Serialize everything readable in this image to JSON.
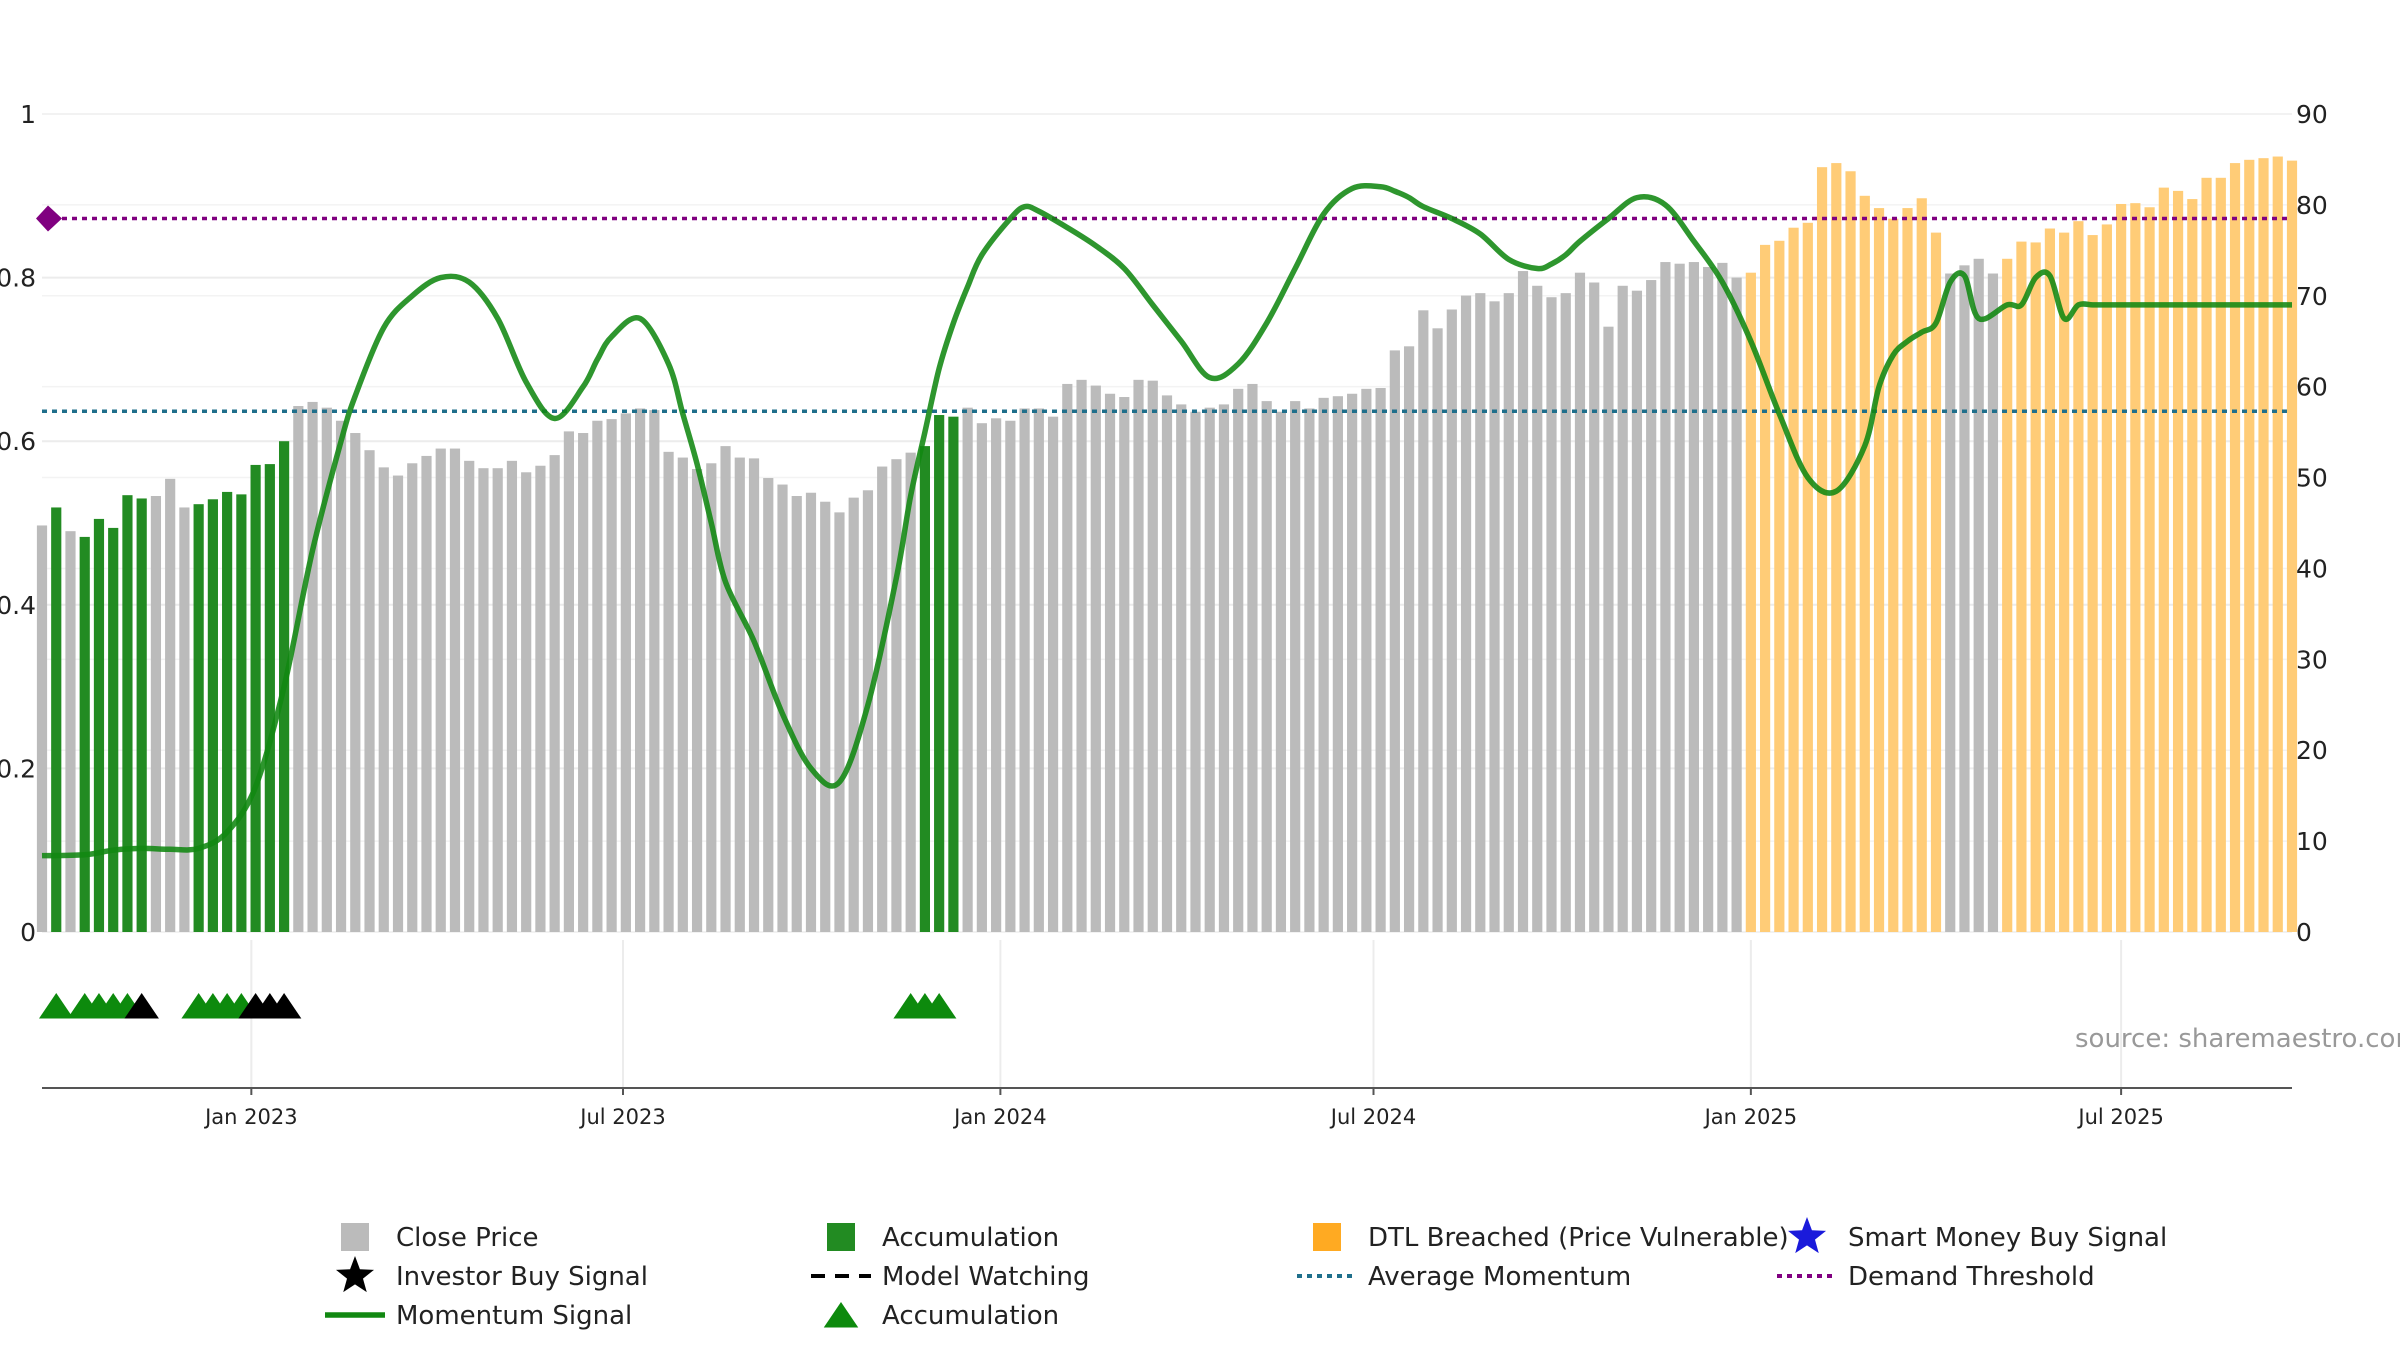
{
  "chart_data": {
    "type": "bar",
    "title": "",
    "colors": {
      "close_price": "#bbbbbb",
      "accumulation": "#228b22",
      "dtl_breached": "#ffcc77",
      "momentum": "#118811",
      "average_momentum": "#1f6f8b",
      "demand_threshold": "#800080",
      "marker_accumulation": "#0d8a0d",
      "marker_investor": "#000000",
      "smart_money": "#1a1adb"
    },
    "left_axis": {
      "ylim": [
        0,
        1
      ],
      "ticks": [
        "0",
        "0.2",
        "0.4",
        "0.6",
        "0.8",
        "1"
      ]
    },
    "right_axis": {
      "ylim": [
        0,
        90
      ],
      "ticks": [
        "0",
        "10",
        "20",
        "30",
        "40",
        "50",
        "60",
        "70",
        "80",
        "90"
      ]
    },
    "x_axis": {
      "start_week": 0,
      "end_week": 158,
      "tick_labels": [
        "Jan 2023",
        "Jul 2023",
        "Jan 2024",
        "Jul 2024",
        "Jan 2025",
        "Jul 2025"
      ],
      "tick_weeks": [
        14.7,
        40.8,
        67.3,
        93.5,
        120.0,
        146.0
      ]
    },
    "close_price": {
      "weeks": [
        0,
        1,
        2,
        3,
        4,
        5,
        6,
        7,
        8,
        9,
        10,
        11,
        12,
        13,
        14,
        15,
        16,
        17,
        18,
        19,
        20,
        21,
        22,
        23,
        24,
        25,
        26,
        27,
        28,
        29,
        30,
        31,
        32,
        33,
        34,
        35,
        36,
        37,
        38,
        39,
        40,
        41,
        42,
        43,
        44,
        45,
        46,
        47,
        48,
        49,
        50,
        51,
        52,
        53,
        54,
        55,
        56,
        57,
        58,
        59,
        60,
        61,
        62,
        63,
        64,
        65,
        66,
        67,
        68,
        69,
        70,
        71,
        72,
        73,
        74,
        75,
        76,
        77,
        78,
        79,
        80,
        81,
        82,
        83,
        84,
        85,
        86,
        87,
        88,
        89,
        90,
        91,
        92,
        93,
        94,
        95,
        96,
        97,
        98,
        99,
        100,
        101,
        102,
        103,
        104,
        105,
        106,
        107,
        108,
        109,
        110,
        111,
        112,
        113,
        114,
        115,
        116,
        117,
        118,
        119,
        120,
        121,
        122,
        123,
        124,
        125,
        126,
        127,
        128,
        129,
        130,
        131,
        132,
        133,
        134,
        135,
        136,
        137,
        138,
        139,
        140,
        141,
        142,
        143,
        144,
        145,
        146,
        147,
        148,
        149,
        150,
        151,
        152,
        153,
        154,
        155,
        156,
        157,
        158
      ],
      "values": [
        0.497,
        0.519,
        0.49,
        0.483,
        0.505,
        0.494,
        0.534,
        0.53,
        0.533,
        0.554,
        0.519,
        0.523,
        0.529,
        0.538,
        0.535,
        0.571,
        0.572,
        0.6,
        0.643,
        0.648,
        0.641,
        0.625,
        0.61,
        0.589,
        0.568,
        0.558,
        0.573,
        0.582,
        0.591,
        0.591,
        0.576,
        0.567,
        0.567,
        0.576,
        0.562,
        0.57,
        0.583,
        0.612,
        0.61,
        0.625,
        0.627,
        0.634,
        0.64,
        0.638,
        0.587,
        0.58,
        0.566,
        0.573,
        0.594,
        0.58,
        0.579,
        0.555,
        0.547,
        0.533,
        0.537,
        0.526,
        0.513,
        0.531,
        0.54,
        0.569,
        0.578,
        0.586,
        0.594,
        0.632,
        0.63,
        0.641,
        0.622,
        0.628,
        0.625,
        0.64,
        0.64,
        0.63,
        0.67,
        0.675,
        0.668,
        0.658,
        0.654,
        0.675,
        0.674,
        0.656,
        0.645,
        0.636,
        0.641,
        0.645,
        0.664,
        0.67,
        0.649,
        0.636,
        0.649,
        0.64,
        0.653,
        0.655,
        0.658,
        0.664,
        0.665,
        0.711,
        0.716,
        0.76,
        0.738,
        0.761,
        0.778,
        0.781,
        0.771,
        0.781,
        0.808,
        0.79,
        0.776,
        0.781,
        0.806,
        0.794,
        0.74,
        0.79,
        0.784,
        0.797,
        0.819,
        0.817,
        0.819,
        0.813,
        0.818,
        0.8,
        0.806,
        0.84,
        0.845,
        0.861,
        0.867,
        0.935,
        0.94,
        0.93,
        0.9,
        0.885,
        0.872,
        0.885,
        0.897,
        0.855,
        0.805,
        0.815,
        0.823,
        0.805,
        0.823,
        0.844,
        0.843,
        0.86,
        0.855,
        0.869,
        0.852,
        0.865,
        0.89,
        0.891,
        0.886,
        0.91,
        0.906,
        0.896,
        0.922,
        0.922,
        0.94,
        0.944,
        0.946,
        0.948,
        0.943
      ]
    },
    "accumulation_weeks": [
      1,
      3,
      4,
      5,
      6,
      7,
      11,
      12,
      13,
      14,
      15,
      16,
      17,
      62,
      63,
      64
    ],
    "dtl_breached_weeks": [
      120,
      121,
      122,
      123,
      124,
      125,
      126,
      127,
      128,
      129,
      130,
      131,
      132,
      133,
      138,
      139,
      140,
      141,
      142,
      143,
      144,
      145,
      146,
      147,
      148,
      149,
      150,
      151,
      152,
      153,
      154,
      155,
      156,
      157,
      158
    ],
    "momentum_signal": {
      "weeks": [
        0,
        3,
        5,
        7,
        9,
        11,
        13,
        15,
        17,
        19,
        21,
        22,
        24,
        26,
        28,
        30,
        32,
        34,
        36,
        38,
        39,
        40,
        42,
        44,
        45,
        46,
        47,
        48,
        50,
        52,
        54,
        56,
        58,
        60,
        61,
        62,
        63,
        64,
        65,
        66,
        68,
        69,
        70,
        72,
        74,
        76,
        78,
        80,
        82,
        84,
        86,
        88,
        90,
        92,
        94,
        95,
        96,
        97,
        99,
        101,
        103,
        105,
        106,
        107,
        108,
        110,
        112,
        114,
        116,
        118,
        120,
        122,
        124,
        126,
        128,
        129,
        130,
        131,
        132,
        133,
        134,
        135,
        136,
        138,
        139,
        140,
        141,
        142,
        143,
        144,
        145,
        146,
        147,
        148,
        149,
        150,
        151,
        152,
        153,
        154,
        155,
        156,
        157,
        158
      ],
      "values": [
        8.4,
        8.5,
        9.0,
        9.2,
        9.1,
        9.2,
        11.0,
        16.0,
        27.0,
        42.0,
        54.0,
        59.0,
        66.5,
        70.0,
        72.0,
        71.5,
        67.5,
        60.5,
        56.5,
        60.0,
        63.0,
        65.5,
        67.5,
        62.5,
        57.0,
        51.5,
        45.0,
        38.5,
        32.0,
        24.0,
        18.0,
        16.5,
        25.0,
        39.0,
        48.0,
        55.0,
        62.0,
        67.0,
        71.0,
        74.5,
        78.5,
        79.8,
        79.3,
        77.5,
        75.5,
        73.0,
        69.0,
        65.0,
        61.0,
        62.5,
        67.0,
        73.0,
        79.0,
        81.8,
        82.0,
        81.5,
        80.8,
        79.8,
        78.5,
        76.8,
        74.0,
        73.0,
        73.5,
        74.5,
        76.0,
        78.5,
        80.8,
        80.0,
        76.0,
        71.5,
        65.0,
        57.0,
        50.0,
        48.5,
        53.5,
        60.0,
        63.5,
        65.0,
        66.0,
        67.0,
        71.5,
        72.2,
        67.5,
        69.0,
        69.0,
        72.0,
        72.2,
        67.5,
        69.0,
        69.0,
        69.0,
        69.0,
        69.0,
        69.0,
        69.0,
        69.0,
        69.0,
        69.0,
        69.0,
        69.0,
        69.0,
        69.0,
        69.0,
        69.0
      ]
    },
    "average_momentum_value": 57.3,
    "demand_threshold_value": 78.5,
    "accumulation_triangles_weeks": [
      1,
      3,
      4,
      5,
      6,
      11,
      12,
      13,
      14,
      61,
      62,
      63
    ],
    "investor_buy_triangles_weeks": [
      7,
      15,
      16,
      17
    ],
    "annotations": {
      "source": "source: sharemaestro.com"
    },
    "legend": [
      {
        "label": "Close Price",
        "symbol": "square-gray"
      },
      {
        "label": "Accumulation",
        "symbol": "square-green"
      },
      {
        "label": "DTL Breached (Price Vulnerable)",
        "symbol": "square-orange"
      },
      {
        "label": "Smart Money Buy Signal",
        "symbol": "star-blue"
      },
      {
        "label": "Investor Buy Signal",
        "symbol": "star-black"
      },
      {
        "label": "Model Watching",
        "symbol": "dash-black"
      },
      {
        "label": "Average Momentum",
        "symbol": "dot-teal"
      },
      {
        "label": "Demand Threshold",
        "symbol": "dot-purple"
      },
      {
        "label": "Momentum Signal",
        "symbol": "line-green"
      },
      {
        "label": "Accumulation",
        "symbol": "triangle-green"
      }
    ]
  }
}
